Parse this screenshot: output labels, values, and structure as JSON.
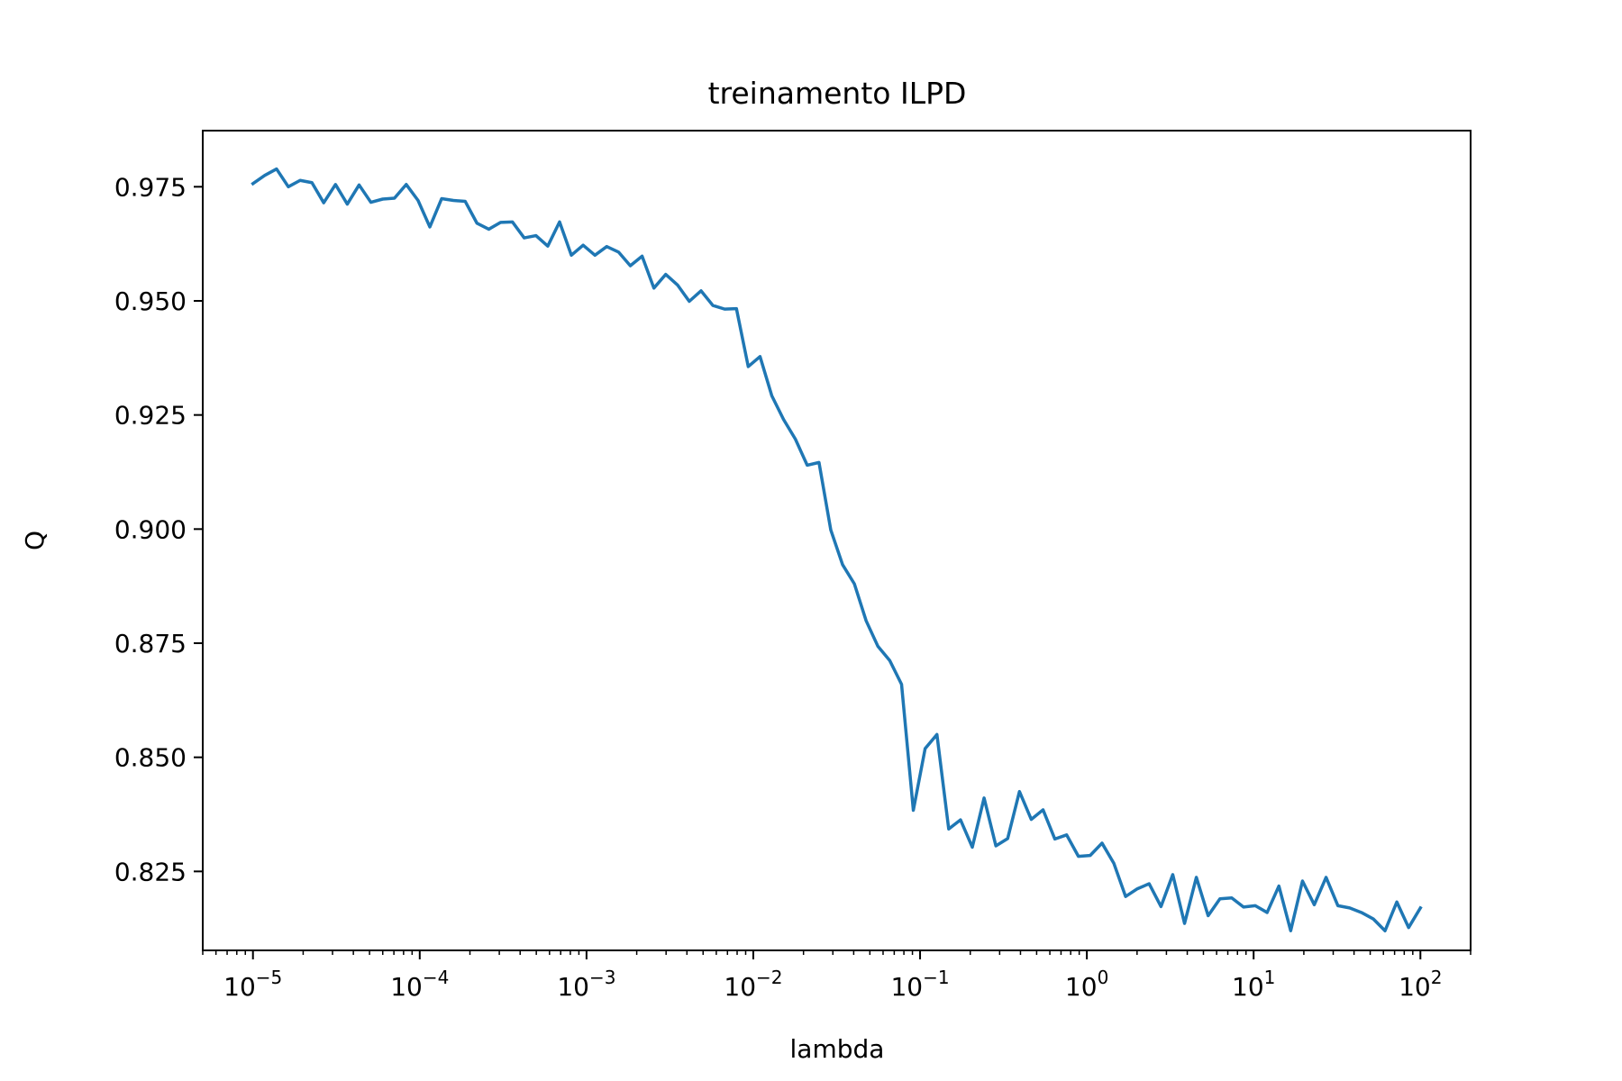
{
  "chart_data": {
    "type": "line",
    "title": "treinamento ILPD",
    "xlabel": "lambda",
    "ylabel": "Q",
    "xscale": "log",
    "xlim": [
      5e-06,
      200
    ],
    "ylim": [
      0.8077,
      0.9873
    ],
    "grid": false,
    "x_ticks": [
      {
        "value": 1e-05,
        "base": "10",
        "exp": "−5"
      },
      {
        "value": 0.0001,
        "base": "10",
        "exp": "−4"
      },
      {
        "value": 0.001,
        "base": "10",
        "exp": "−3"
      },
      {
        "value": 0.01,
        "base": "10",
        "exp": "−2"
      },
      {
        "value": 0.1,
        "base": "10",
        "exp": "−1"
      },
      {
        "value": 1,
        "base": "10",
        "exp": "0"
      },
      {
        "value": 10,
        "base": "10",
        "exp": "1"
      },
      {
        "value": 100,
        "base": "10",
        "exp": "2"
      }
    ],
    "y_ticks": [
      {
        "value": 0.825,
        "label": "0.825"
      },
      {
        "value": 0.85,
        "label": "0.850"
      },
      {
        "value": 0.875,
        "label": "0.875"
      },
      {
        "value": 0.9,
        "label": "0.900"
      },
      {
        "value": 0.925,
        "label": "0.925"
      },
      {
        "value": 0.95,
        "label": "0.950"
      },
      {
        "value": 0.975,
        "label": "0.975"
      }
    ],
    "series": [
      {
        "color": "#1f77b4",
        "x_range": [
          1e-05,
          100
        ],
        "num_points": 100,
        "values": [
          0.9757,
          0.9775,
          0.9789,
          0.975,
          0.9764,
          0.9759,
          0.9715,
          0.9755,
          0.9712,
          0.9754,
          0.9716,
          0.9723,
          0.9725,
          0.9755,
          0.972,
          0.9662,
          0.9724,
          0.972,
          0.9718,
          0.967,
          0.9657,
          0.9672,
          0.9673,
          0.9638,
          0.9643,
          0.962,
          0.9673,
          0.96,
          0.9622,
          0.96,
          0.9619,
          0.9607,
          0.9577,
          0.9598,
          0.9528,
          0.9558,
          0.9535,
          0.9499,
          0.9522,
          0.949,
          0.9482,
          0.9483,
          0.9356,
          0.9378,
          0.9292,
          0.924,
          0.9197,
          0.914,
          0.9146,
          0.8998,
          0.8922,
          0.888,
          0.8799,
          0.8743,
          0.8712,
          0.866,
          0.8384,
          0.8519,
          0.855,
          0.8343,
          0.8363,
          0.8303,
          0.8411,
          0.8306,
          0.8322,
          0.8425,
          0.8364,
          0.8385,
          0.8321,
          0.833,
          0.8283,
          0.8285,
          0.8312,
          0.8268,
          0.8195,
          0.8212,
          0.8223,
          0.8173,
          0.8243,
          0.8136,
          0.8237,
          0.8153,
          0.819,
          0.8192,
          0.8172,
          0.8175,
          0.816,
          0.8218,
          0.812,
          0.8229,
          0.8177,
          0.8237,
          0.8175,
          0.817,
          0.816,
          0.8146,
          0.812,
          0.8183,
          0.8127,
          0.817
        ]
      }
    ]
  }
}
